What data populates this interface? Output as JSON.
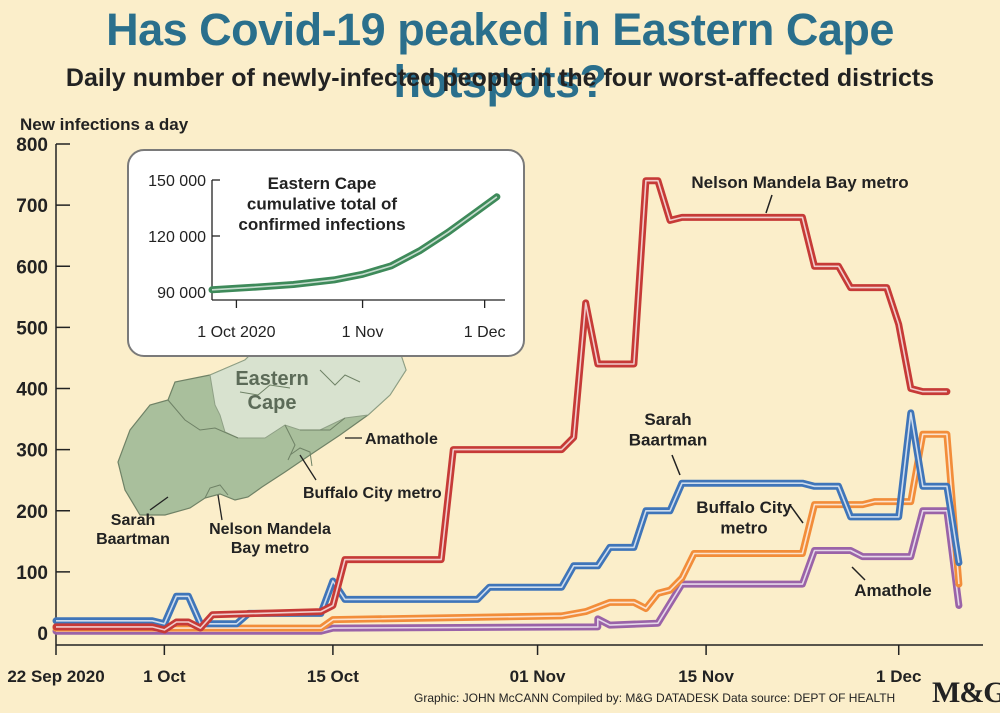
{
  "chart_data": [
    {
      "type": "line",
      "title": "Has Covid-19 peaked in Eastern Cape hotspots?",
      "subtitle": "Daily number of newly-infected people in the four worst-affected districts",
      "ylabel": "New infections a day",
      "ylim": [
        0,
        800
      ],
      "yticks": [
        "800",
        "700",
        "600",
        "500",
        "400",
        "300",
        "200",
        "100",
        "0"
      ],
      "xlim": [
        "2020-09-22",
        "2020-12-08"
      ],
      "xticks": [
        {
          "date": "2020-09-22",
          "label": "22 Sep 2020"
        },
        {
          "date": "2020-10-01",
          "label": "1 Oct"
        },
        {
          "date": "2020-10-15",
          "label": "15 Oct"
        },
        {
          "date": "2020-11-01",
          "label": "01 Nov"
        },
        {
          "date": "2020-11-15",
          "label": "15 Nov"
        },
        {
          "date": "2020-12-01",
          "label": "1 Dec"
        }
      ],
      "series": [
        {
          "name": "Amathole",
          "color": "#9a63a8",
          "x": [
            "2020-09-22",
            "2020-10-14",
            "2020-10-15",
            "2020-11-06",
            "2020-11-06",
            "2020-11-07",
            "2020-11-11",
            "2020-11-13",
            "2020-11-23",
            "2020-11-24",
            "2020-11-27",
            "2020-11-28",
            "2020-12-02",
            "2020-12-03",
            "2020-12-05",
            "2020-12-06"
          ],
          "y": [
            3,
            3,
            8,
            10,
            23,
            13,
            16,
            80,
            80,
            135,
            135,
            125,
            125,
            200,
            200,
            45
          ]
        },
        {
          "name": "Buffalo City metro",
          "color": "#f28d3a",
          "x": [
            "2020-09-22",
            "2020-10-14",
            "2020-10-15",
            "2020-11-03",
            "2020-11-05",
            "2020-11-07",
            "2020-11-09",
            "2020-11-10",
            "2020-11-11",
            "2020-11-12",
            "2020-11-13",
            "2020-11-14",
            "2020-11-15",
            "2020-11-23",
            "2020-11-24",
            "2020-11-28",
            "2020-11-29",
            "2020-12-02",
            "2020-12-03",
            "2020-12-05",
            "2020-12-06"
          ],
          "y": [
            8,
            8,
            22,
            28,
            35,
            50,
            50,
            40,
            65,
            70,
            90,
            130,
            130,
            130,
            210,
            210,
            215,
            215,
            325,
            325,
            80
          ]
        },
        {
          "name": "Sarah Baartman",
          "color": "#3f75b9",
          "x": [
            "2020-09-22",
            "2020-09-30",
            "2020-10-01",
            "2020-10-02",
            "2020-10-03",
            "2020-10-04",
            "2020-10-07",
            "2020-10-08",
            "2020-10-14",
            "2020-10-15",
            "2020-10-16",
            "2020-10-27",
            "2020-10-28",
            "2020-11-03",
            "2020-11-04",
            "2020-11-06",
            "2020-11-07",
            "2020-11-09",
            "2020-11-10",
            "2020-11-12",
            "2020-11-13",
            "2020-11-23",
            "2020-11-24",
            "2020-11-26",
            "2020-11-27",
            "2020-12-01",
            "2020-12-02",
            "2020-12-03",
            "2020-12-05",
            "2020-12-06"
          ],
          "y": [
            20,
            20,
            15,
            60,
            60,
            15,
            15,
            32,
            32,
            85,
            55,
            55,
            75,
            75,
            110,
            110,
            140,
            140,
            200,
            200,
            245,
            245,
            240,
            240,
            190,
            190,
            360,
            240,
            240,
            115
          ]
        },
        {
          "name": "Nelson Mandela Bay metro",
          "color": "#c63a37",
          "x": [
            "2020-09-22",
            "2020-09-30",
            "2020-10-01",
            "2020-10-02",
            "2020-10-03",
            "2020-10-04",
            "2020-10-05",
            "2020-10-14",
            "2020-10-15",
            "2020-10-16",
            "2020-10-24",
            "2020-10-25",
            "2020-11-03",
            "2020-11-04",
            "2020-11-05",
            "2020-11-06",
            "2020-11-07",
            "2020-11-09",
            "2020-11-10",
            "2020-11-11",
            "2020-11-12",
            "2020-11-13",
            "2020-11-14",
            "2020-11-23",
            "2020-11-24",
            "2020-11-26",
            "2020-11-27",
            "2020-11-30",
            "2020-12-01",
            "2020-12-02",
            "2020-12-03",
            "2020-12-05"
          ],
          "y": [
            10,
            10,
            5,
            18,
            18,
            8,
            30,
            35,
            45,
            120,
            120,
            300,
            300,
            320,
            540,
            440,
            440,
            440,
            740,
            740,
            675,
            680,
            680,
            680,
            600,
            600,
            565,
            565,
            505,
            400,
            395,
            395
          ]
        }
      ],
      "annotations": [
        {
          "text": "Nelson Mandela Bay metro"
        },
        {
          "text": "Sarah Baartman"
        },
        {
          "text": "Buffalo City metro"
        },
        {
          "text": "Amathole"
        }
      ]
    },
    {
      "type": "line",
      "title": "Eastern Cape cumulative total of confirmed infections",
      "ylim": [
        90000,
        150000
      ],
      "yticks": [
        "150 000",
        "120 000",
        "90 000"
      ],
      "xlim": [
        "2020-09-25",
        "2020-12-06"
      ],
      "xticks": [
        {
          "date": "2020-10-01",
          "label": "1 Oct 2020"
        },
        {
          "date": "2020-11-01",
          "label": "1 Nov"
        },
        {
          "date": "2020-12-01",
          "label": "1 Dec"
        }
      ],
      "series": [
        {
          "color": "#3e8a5a",
          "x": [
            "2020-09-25",
            "2020-10-05",
            "2020-10-15",
            "2020-10-25",
            "2020-11-01",
            "2020-11-08",
            "2020-11-15",
            "2020-11-22",
            "2020-11-29",
            "2020-12-04"
          ],
          "y": [
            91200,
            92500,
            94000,
            96500,
            99500,
            104000,
            112000,
            122000,
            133000,
            141000
          ]
        }
      ]
    }
  ],
  "map": {
    "labels": [
      "Eastern Cape",
      "Amathole",
      "Buffalo City metro",
      "Sarah Baartman",
      "Nelson Mandela Bay metro"
    ]
  },
  "footer": "Graphic: JOHN McCANN  Compiled by: M&G DATADESK  Data source: DEPT OF HEALTH",
  "logo": "M&G",
  "colors": {
    "background": "#fbeeca",
    "title": "#2a6f8c",
    "map_fill": "#a9bf9c",
    "map_highlight": "#d8e2cf"
  }
}
